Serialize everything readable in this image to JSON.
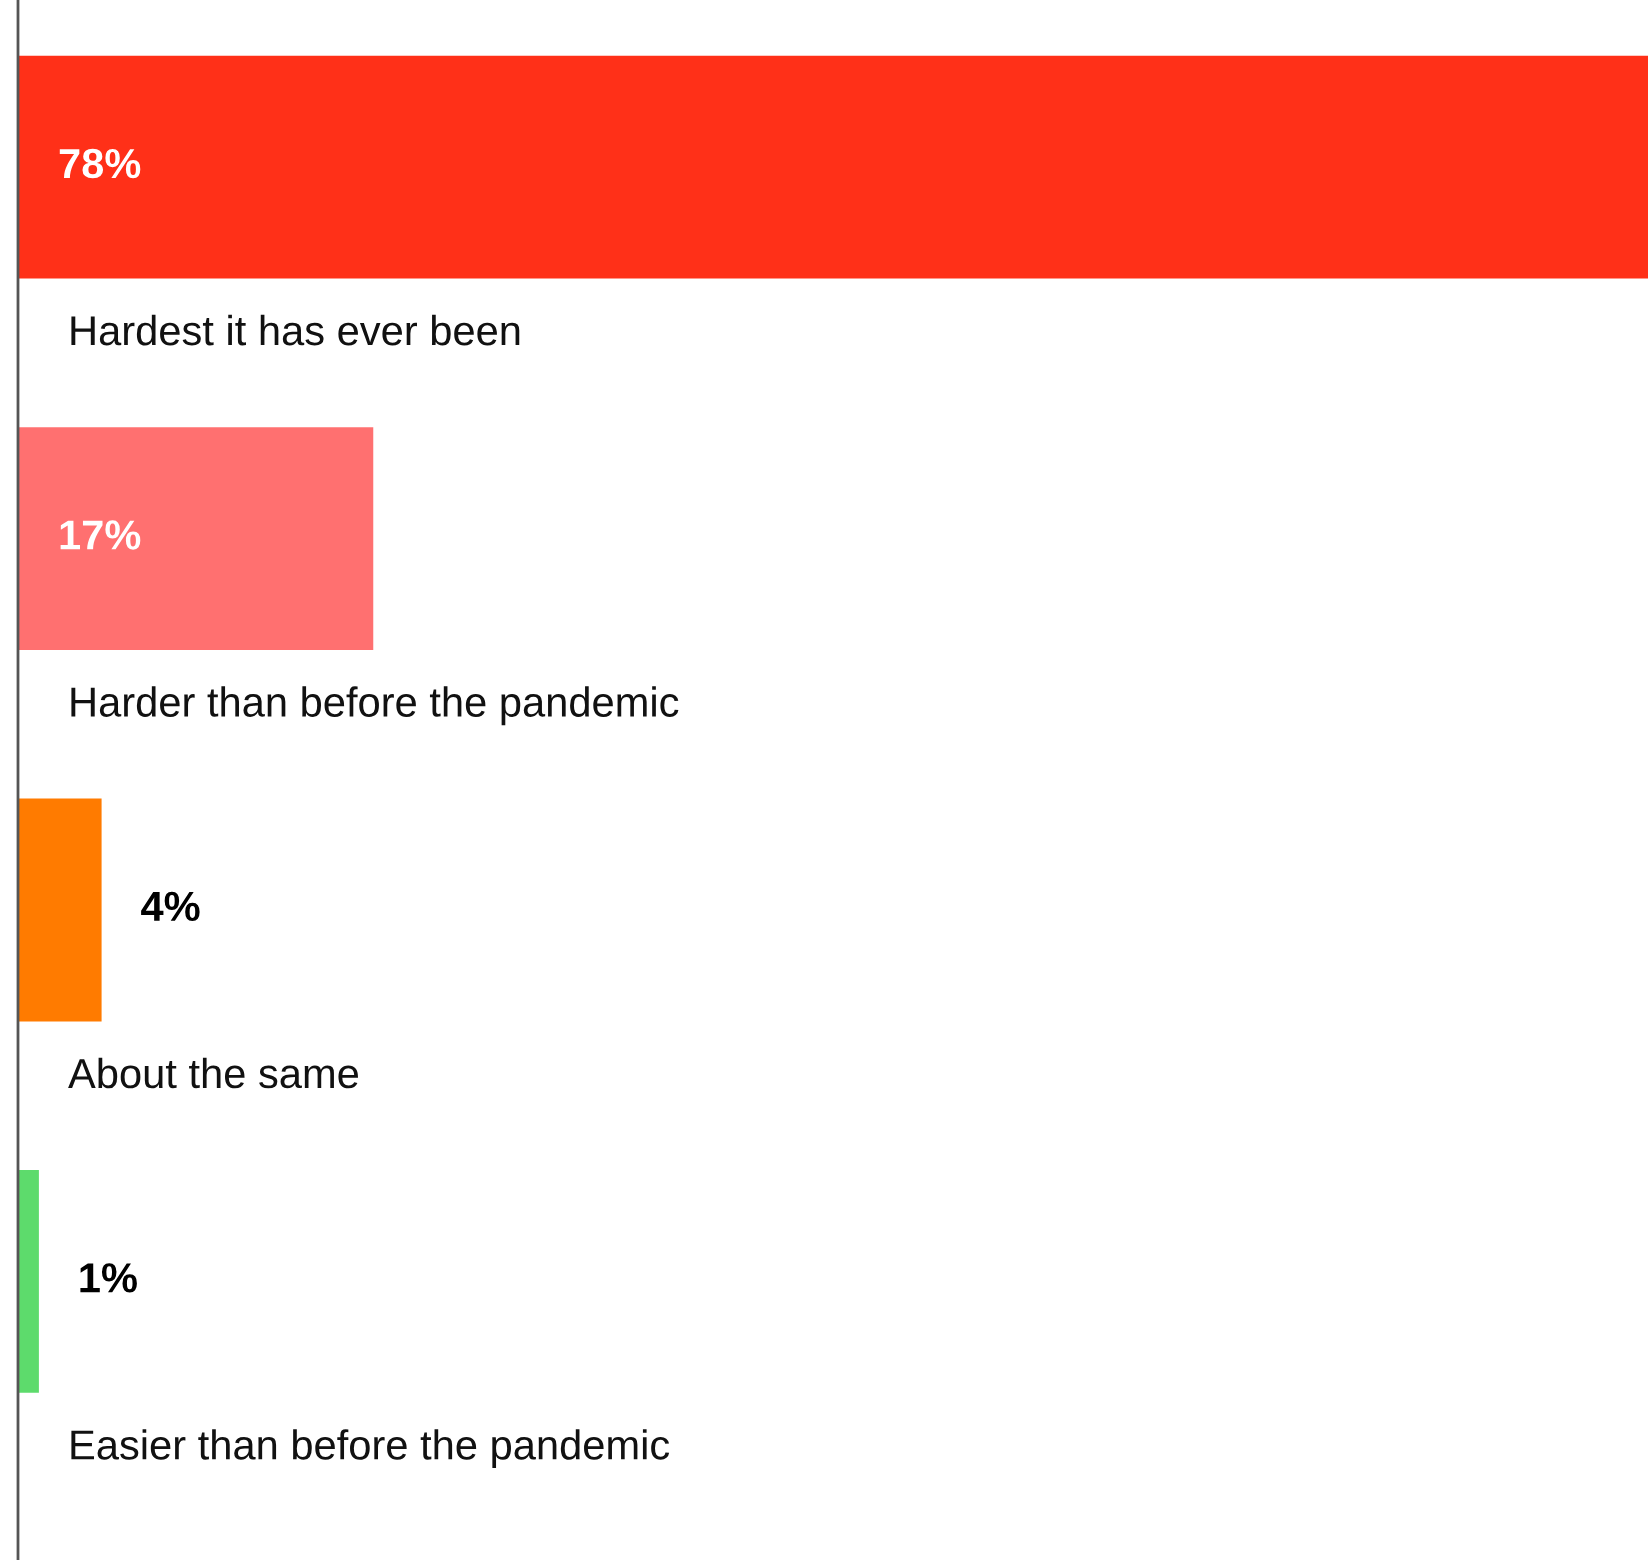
{
  "chart_data": {
    "type": "bar",
    "orientation": "horizontal",
    "categories": [
      "Hardest it has ever been",
      "Harder than before the pandemic",
      "About the same",
      "Easier than before the pandemic"
    ],
    "values": [
      78,
      17,
      4,
      1
    ],
    "colors": [
      "#ff3018",
      "#ff7070",
      "#ff7b00",
      "#5ddb6c"
    ],
    "value_labels": [
      "78%",
      "17%",
      "4%",
      "1%"
    ],
    "xlim": [
      0,
      78
    ]
  }
}
